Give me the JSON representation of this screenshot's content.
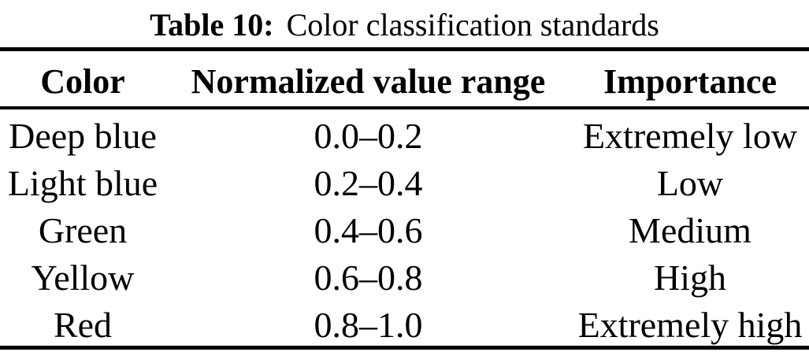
{
  "table": {
    "caption": {
      "label": "Table 10:",
      "text": "Color classification standards"
    },
    "columns": [
      "Color",
      "Normalized value range",
      "Importance"
    ],
    "rows": [
      [
        "Deep blue",
        "0.0–0.2",
        "Extremely low"
      ],
      [
        "Light blue",
        "0.2–0.4",
        "Low"
      ],
      [
        "Green",
        "0.4–0.6",
        "Medium"
      ],
      [
        "Yellow",
        "0.6–0.8",
        "High"
      ],
      [
        "Red",
        "0.8–1.0",
        "Extremely high"
      ]
    ],
    "colors": {
      "background": "#ffffff",
      "text": "#000000",
      "rule": "#000000"
    }
  }
}
